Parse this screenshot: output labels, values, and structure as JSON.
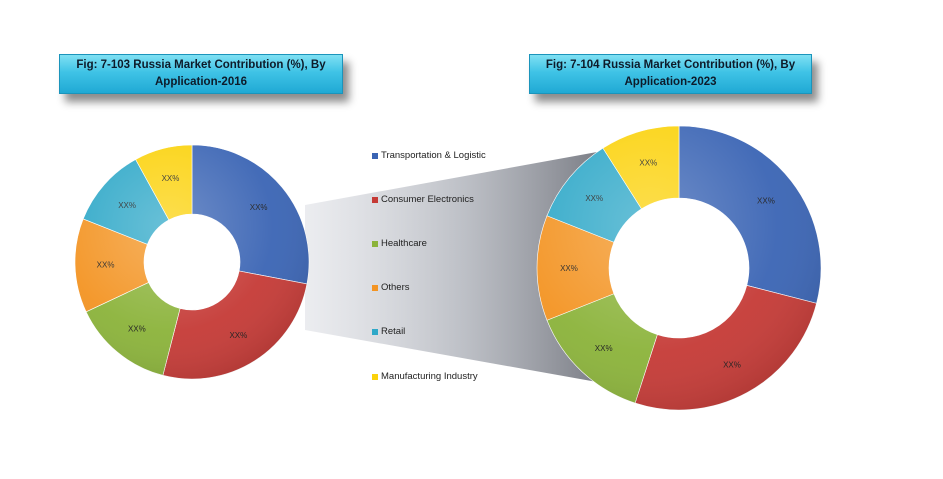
{
  "colors": {
    "transport": "#3a64b4",
    "consumer": "#c53a36",
    "healthcare": "#8bb33a",
    "others": "#f39423",
    "retail": "#2fa8c8",
    "manufacturing": "#fbd20b"
  },
  "chart_data": [
    {
      "type": "pie",
      "title": "Fig: 7-103 Russia Market Contribution (%), By Application-2016",
      "categories": [
        "Transportation & Logistic",
        "Consumer Electronics",
        "Healthcare",
        "Others",
        "Retail",
        "Manufacturing Industry"
      ],
      "values": [
        28,
        26,
        14,
        13,
        11,
        8
      ],
      "data_labels": [
        "XX%",
        "XX%",
        "XX%",
        "XX%",
        "XX%",
        "XX%"
      ],
      "donut": true
    },
    {
      "type": "pie",
      "title": "Fig: 7-104 Russia Market Contribution (%), By Application-2023",
      "categories": [
        "Transportation & Logistic",
        "Consumer Electronics",
        "Healthcare",
        "Others",
        "Retail",
        "Manufacturing Industry"
      ],
      "values": [
        29,
        26,
        14,
        12,
        10,
        9
      ],
      "data_labels": [
        "XX%",
        "XX%",
        "XX%",
        "XX%",
        "XX%",
        "XX%"
      ],
      "donut": true
    }
  ],
  "legend": {
    "placement": "center",
    "items": [
      {
        "label": "Transportation & Logistic",
        "color": "#3a64b4"
      },
      {
        "label": "Consumer Electronics",
        "color": "#c53a36"
      },
      {
        "label": "Healthcare",
        "color": "#8bb33a"
      },
      {
        "label": "Others",
        "color": "#f39423"
      },
      {
        "label": "Retail",
        "color": "#2fa8c8"
      },
      {
        "label": "Manufacturing Industry",
        "color": "#fbd20b"
      }
    ]
  }
}
